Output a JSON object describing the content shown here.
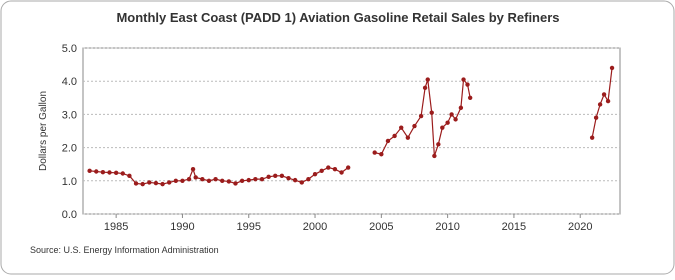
{
  "chart_data": {
    "type": "line",
    "title": "Monthly East Coast (PADD 1) Aviation Gasoline Retail Sales by Refiners",
    "y_label": "Dollars per Gallon",
    "source": "Source: U.S. Energy Information Administration",
    "x": [
      1983.0,
      1983.5,
      1984.0,
      1984.5,
      1985.0,
      1985.5,
      1986.0,
      1986.5,
      1987.0,
      1987.5,
      1988.0,
      1988.5,
      1989.0,
      1989.5,
      1990.0,
      1990.5,
      1990.8,
      1991.0,
      1991.5,
      1992.0,
      1992.5,
      1993.0,
      1993.5,
      1994.0,
      1994.5,
      1995.0,
      1995.5,
      1996.0,
      1996.5,
      1997.0,
      1997.5,
      1998.0,
      1998.5,
      1999.0,
      1999.5,
      2000.0,
      2000.5,
      2001.0,
      2001.5,
      2002.0,
      2002.5,
      2003.5,
      2004.5,
      2005.0,
      2005.5,
      2006.0,
      2006.5,
      2007.0,
      2007.5,
      2008.0,
      2008.3,
      2008.5,
      2008.8,
      2009.0,
      2009.3,
      2009.6,
      2010.0,
      2010.3,
      2010.6,
      2011.0,
      2011.2,
      2011.5,
      2011.7,
      2016.0,
      2020.9,
      2021.2,
      2021.5,
      2021.8,
      2022.1,
      2022.4
    ],
    "series": [
      {
        "name": "Aviation Gasoline",
        "color": "#9b1c1c",
        "values": [
          1.3,
          1.28,
          1.26,
          1.25,
          1.24,
          1.22,
          1.15,
          0.92,
          0.9,
          0.95,
          0.93,
          0.9,
          0.95,
          1.0,
          1.0,
          1.05,
          1.35,
          1.1,
          1.05,
          1.0,
          1.05,
          1.0,
          0.98,
          0.92,
          1.0,
          1.02,
          1.05,
          1.05,
          1.12,
          1.15,
          1.15,
          1.08,
          1.02,
          0.95,
          1.05,
          1.2,
          1.3,
          1.4,
          1.35,
          1.25,
          1.4,
          null,
          1.85,
          1.8,
          2.2,
          2.35,
          2.6,
          2.3,
          2.65,
          2.95,
          3.8,
          4.05,
          3.05,
          1.75,
          2.1,
          2.6,
          2.75,
          3.0,
          2.85,
          3.2,
          4.05,
          3.9,
          3.5,
          null,
          2.3,
          2.9,
          3.3,
          3.6,
          3.4,
          4.4
        ]
      }
    ],
    "xlim": [
      1982.5,
      2023.0
    ],
    "xticks": [
      1985,
      1990,
      1995,
      2000,
      2005,
      2010,
      2015,
      2020
    ],
    "ylim": [
      0,
      5
    ],
    "yticks": [
      {
        "value": 0,
        "label": "0.0"
      },
      {
        "value": 1,
        "label": "1.0"
      },
      {
        "value": 2,
        "label": "2.0"
      },
      {
        "value": 3,
        "label": "3.0"
      },
      {
        "value": 4,
        "label": "4.0"
      },
      {
        "value": 5,
        "label": "5.0"
      }
    ],
    "grid": true
  }
}
